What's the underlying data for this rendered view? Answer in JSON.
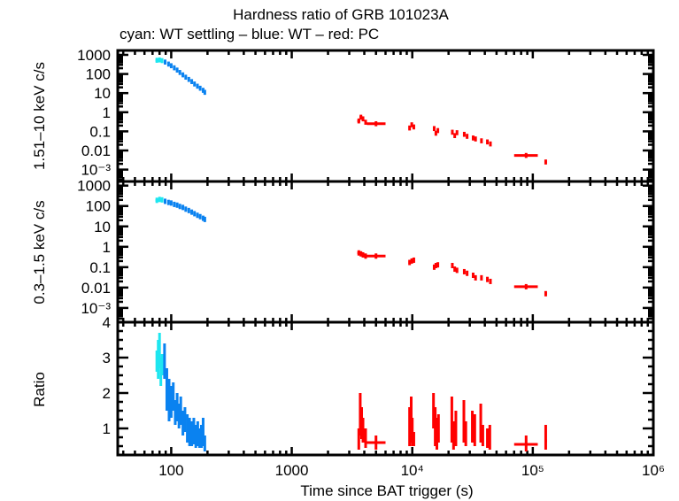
{
  "chart_data": [
    {
      "panel": "top",
      "type": "scatter",
      "title": "Hardness ratio of GRB 101023A",
      "subtitle": "cyan: WT settling – blue: WT – red: PC",
      "xlabel": "Time since BAT trigger (s)",
      "ylabel": "1.51–10 keV c/s",
      "xscale": "log",
      "yscale": "log",
      "xlim": [
        36,
        1000000
      ],
      "ylim": [
        0.00024,
        1700
      ],
      "ytick_labels": [
        "1000",
        "100",
        "10",
        "1",
        "0.1",
        "0.01",
        "10⁻³"
      ],
      "ytick_values": [
        1000,
        100,
        10,
        1,
        0.1,
        0.01,
        0.001
      ],
      "series": [
        {
          "name": "WT settling",
          "color": "#1ee6f0",
          "points": [
            [
              76,
              520,
              74,
              80
            ],
            [
              80,
              540,
              78,
              82
            ],
            [
              84,
              500,
              82,
              86
            ]
          ]
        },
        {
          "name": "WT",
          "color": "#0a82f0",
          "points": [
            [
              89,
              420,
              87,
              91
            ],
            [
              95,
              330,
              93,
              97
            ],
            [
              100,
              270,
              98,
              102
            ],
            [
              106,
              210,
              104,
              108
            ],
            [
              112,
              160,
              110,
              114
            ],
            [
              118,
              120,
              116,
              120
            ],
            [
              125,
              90,
              122,
              128
            ],
            [
              132,
              68,
              129,
              135
            ],
            [
              140,
              52,
              137,
              143
            ],
            [
              148,
              40,
              145,
              151
            ],
            [
              156,
              30,
              153,
              159
            ],
            [
              165,
              23,
              162,
              168
            ],
            [
              174,
              18,
              171,
              177
            ],
            [
              184,
              14,
              181,
              187
            ],
            [
              190,
              11,
              188,
              192
            ]
          ]
        },
        {
          "name": "PC",
          "color": "#ff0000",
          "points": [
            [
              3600,
              0.35,
              3500,
              3700
            ],
            [
              3750,
              0.55,
              3650,
              3850
            ],
            [
              3900,
              0.45,
              3800,
              4000
            ],
            [
              4100,
              0.3,
              4000,
              4200
            ],
            [
              5000,
              0.25,
              4200,
              6000
            ],
            [
              9500,
              0.15,
              9300,
              9700
            ],
            [
              9900,
              0.22,
              9700,
              10100
            ],
            [
              10300,
              0.17,
              10100,
              10500
            ],
            [
              15200,
              0.14,
              15000,
              15400
            ],
            [
              15700,
              0.08,
              15500,
              15900
            ],
            [
              16300,
              0.11,
              16100,
              16500
            ],
            [
              21500,
              0.09,
              21200,
              21800
            ],
            [
              22500,
              0.06,
              22200,
              22800
            ],
            [
              23500,
              0.085,
              23200,
              23800
            ],
            [
              27000,
              0.07,
              26500,
              27500
            ],
            [
              28500,
              0.055,
              28000,
              29000
            ],
            [
              32000,
              0.045,
              31500,
              32500
            ],
            [
              33500,
              0.04,
              33000,
              34000
            ],
            [
              37500,
              0.032,
              37000,
              38000
            ],
            [
              42000,
              0.028,
              41500,
              42500
            ],
            [
              44500,
              0.022,
              44000,
              45000
            ],
            [
              88000,
              0.0055,
              70000,
              110000
            ],
            [
              128000,
              0.0025,
              125000,
              131000
            ]
          ]
        }
      ]
    },
    {
      "panel": "middle",
      "type": "scatter",
      "ylabel": "0.3–1.5 keV c/s",
      "xscale": "log",
      "yscale": "log",
      "xlim": [
        36,
        1000000
      ],
      "ylim": [
        0.0002,
        1600
      ],
      "ytick_labels": [
        "1000",
        "100",
        "10",
        "1",
        "0.1",
        "0.01",
        "10⁻³"
      ],
      "ytick_values": [
        1000,
        100,
        10,
        1,
        0.1,
        0.01,
        0.001
      ],
      "series": [
        {
          "name": "WT settling",
          "color": "#1ee6f0",
          "points": [
            [
              76,
              190,
              74,
              80
            ],
            [
              80,
              210,
              78,
              82
            ],
            [
              84,
              200,
              82,
              86
            ]
          ]
        },
        {
          "name": "WT",
          "color": "#0a82f0",
          "points": [
            [
              89,
              170,
              87,
              91
            ],
            [
              95,
              150,
              93,
              97
            ],
            [
              100,
              140,
              98,
              102
            ],
            [
              106,
              120,
              104,
              108
            ],
            [
              112,
              110,
              110,
              114
            ],
            [
              118,
              95,
              116,
              120
            ],
            [
              125,
              85,
              122,
              128
            ],
            [
              132,
              70,
              129,
              135
            ],
            [
              140,
              60,
              137,
              143
            ],
            [
              148,
              50,
              145,
              151
            ],
            [
              156,
              42,
              153,
              159
            ],
            [
              165,
              35,
              162,
              168
            ],
            [
              174,
              30,
              171,
              177
            ],
            [
              184,
              25,
              181,
              187
            ],
            [
              190,
              22,
              188,
              192
            ]
          ]
        },
        {
          "name": "PC",
          "color": "#ff0000",
          "points": [
            [
              3600,
              0.5,
              3500,
              3700
            ],
            [
              3750,
              0.45,
              3650,
              3850
            ],
            [
              3900,
              0.4,
              3800,
              4000
            ],
            [
              4100,
              0.35,
              4000,
              4200
            ],
            [
              5000,
              0.35,
              4200,
              6000
            ],
            [
              9500,
              0.17,
              9300,
              9700
            ],
            [
              9900,
              0.2,
              9700,
              10100
            ],
            [
              10300,
              0.22,
              10100,
              10500
            ],
            [
              15200,
              0.1,
              15000,
              15400
            ],
            [
              15700,
              0.12,
              15500,
              15900
            ],
            [
              16300,
              0.13,
              16100,
              16500
            ],
            [
              21500,
              0.12,
              21200,
              21800
            ],
            [
              22500,
              0.08,
              22200,
              22800
            ],
            [
              23500,
              0.07,
              23200,
              23800
            ],
            [
              27000,
              0.06,
              26500,
              27500
            ],
            [
              28500,
              0.05,
              28000,
              29000
            ],
            [
              32000,
              0.04,
              31500,
              32500
            ],
            [
              33500,
              0.03,
              33000,
              34000
            ],
            [
              37500,
              0.03,
              37000,
              38000
            ],
            [
              42000,
              0.025,
              41500,
              42500
            ],
            [
              44500,
              0.02,
              44000,
              45000
            ],
            [
              88000,
              0.011,
              70000,
              110000
            ],
            [
              128000,
              0.005,
              125000,
              131000
            ]
          ]
        }
      ]
    },
    {
      "panel": "bottom",
      "type": "scatter",
      "ylabel": "Ratio",
      "xlabel": "Time since BAT trigger (s)",
      "xscale": "log",
      "yscale": "linear",
      "xlim": [
        36,
        1000000
      ],
      "ylim": [
        0.25,
        4
      ],
      "ytick_labels": [
        "4",
        "3",
        "2",
        "1"
      ],
      "ytick_values": [
        4,
        3,
        2,
        1
      ],
      "xtick_labels": [
        "100",
        "1000",
        "10⁴",
        "10⁵",
        "10⁶"
      ],
      "xtick_values": [
        100,
        1000,
        10000,
        100000,
        1000000
      ],
      "series": [
        {
          "name": "WT settling",
          "color": "#1ee6f0",
          "points": [
            [
              76,
              2.9,
              3.2,
              2.6
            ],
            [
              78,
              2.8,
              3.5,
              2.4
            ],
            [
              80,
              3.0,
              3.7,
              2.7
            ],
            [
              82,
              2.7,
              3.0,
              2.2
            ],
            [
              84,
              2.9,
              3.1,
              2.5
            ]
          ]
        },
        {
          "name": "WT",
          "color": "#0a82f0",
          "points": [
            [
              88,
              2.9,
              3.4,
              2.4
            ],
            [
              92,
              2.2,
              2.7,
              1.5
            ],
            [
              96,
              1.5,
              2.4,
              1.2
            ],
            [
              100,
              1.7,
              2.2,
              1.3
            ],
            [
              104,
              1.9,
              2.3,
              1.5
            ],
            [
              108,
              1.4,
              1.8,
              1.1
            ],
            [
              112,
              1.6,
              2.0,
              1.2
            ],
            [
              116,
              1.3,
              1.7,
              1.0
            ],
            [
              120,
              1.5,
              1.9,
              1.1
            ],
            [
              125,
              1.1,
              1.5,
              0.8
            ],
            [
              130,
              1.2,
              1.6,
              0.9
            ],
            [
              136,
              1.0,
              1.4,
              0.6
            ],
            [
              142,
              0.9,
              1.3,
              0.5
            ],
            [
              148,
              0.8,
              1.2,
              0.5
            ],
            [
              154,
              0.9,
              1.3,
              0.55
            ],
            [
              160,
              0.7,
              1.1,
              0.45
            ],
            [
              166,
              0.8,
              1.2,
              0.5
            ],
            [
              172,
              0.7,
              1.0,
              0.45
            ],
            [
              178,
              0.75,
              1.1,
              0.45
            ],
            [
              184,
              0.8,
              1.3,
              0.5
            ],
            [
              190,
              0.5,
              0.8,
              0.35
            ]
          ]
        },
        {
          "name": "PC",
          "color": "#ff0000",
          "points": [
            [
              3600,
              0.7,
              1.0,
              0.4
            ],
            [
              3700,
              1.5,
              2.0,
              0.8
            ],
            [
              3800,
              1.1,
              1.6,
              0.7
            ],
            [
              3900,
              0.9,
              1.3,
              0.6
            ],
            [
              4100,
              0.7,
              1.0,
              0.45
            ],
            [
              5000,
              0.6,
              0.8,
              0.4,
              4200,
              6000
            ],
            [
              9500,
              0.8,
              1.6,
              0.5
            ],
            [
              9800,
              1.2,
              1.9,
              0.6
            ],
            [
              10000,
              0.9,
              1.3,
              0.5
            ],
            [
              10300,
              0.7,
              0.9,
              0.5
            ],
            [
              15000,
              1.6,
              2.0,
              1.0
            ],
            [
              15500,
              1.0,
              1.6,
              0.5
            ],
            [
              16000,
              0.9,
              1.3,
              0.4
            ],
            [
              16500,
              1.1,
              1.4,
              0.6
            ],
            [
              21300,
              1.2,
              1.9,
              0.6
            ],
            [
              22000,
              0.8,
              1.2,
              0.4
            ],
            [
              23000,
              1.0,
              1.5,
              0.5
            ],
            [
              26800,
              1.2,
              1.8,
              0.6
            ],
            [
              27800,
              0.8,
              1.2,
              0.5
            ],
            [
              31500,
              1.0,
              1.5,
              0.6
            ],
            [
              33000,
              0.9,
              1.4,
              0.5
            ],
            [
              37000,
              1.1,
              1.7,
              0.6
            ],
            [
              38500,
              0.8,
              1.1,
              0.5
            ],
            [
              42000,
              0.7,
              1.0,
              0.45
            ],
            [
              44000,
              0.8,
              1.1,
              0.4
            ],
            [
              88000,
              0.55,
              0.8,
              0.35,
              70000,
              110000
            ],
            [
              128000,
              0.65,
              1.1,
              0.4,
              125000,
              131000
            ]
          ]
        }
      ]
    }
  ],
  "colors": {
    "wt_settling": "#1ee6f0",
    "wt": "#0a82f0",
    "pc": "#ff0000",
    "axis": "#000000"
  }
}
